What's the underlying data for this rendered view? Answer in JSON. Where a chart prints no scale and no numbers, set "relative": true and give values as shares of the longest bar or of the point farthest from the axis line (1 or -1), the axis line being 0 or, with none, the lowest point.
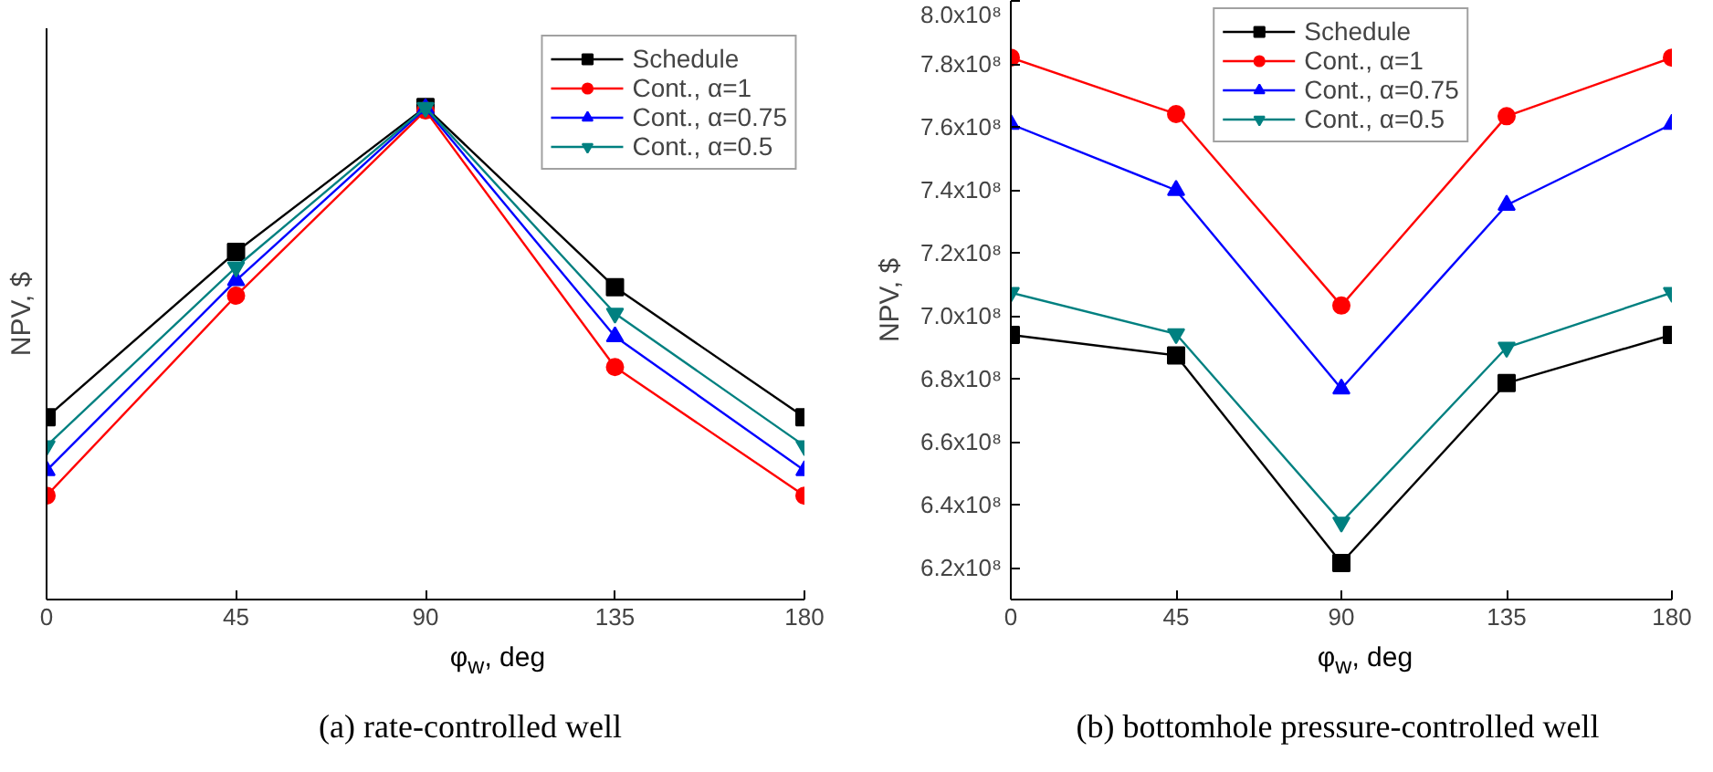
{
  "chart_data": [
    {
      "type": "line",
      "title": "(a) rate-controlled well",
      "xlabel": "φ$_{w}$, deg",
      "ylabel": "NPV, $",
      "relative": true,
      "x": [
        0,
        45,
        90,
        135,
        180
      ],
      "xlim": [
        0,
        180
      ],
      "xticks": [
        0,
        45,
        90,
        135,
        180
      ],
      "grid": false,
      "legend": "top right",
      "series": [
        {
          "name": "Schedule",
          "color": "#000000",
          "marker": "square",
          "values": [
            0.37,
            0.706,
            1,
            0.634,
            0.37
          ]
        },
        {
          "name": "Cont., α=1",
          "color": "#ff0000",
          "marker": "circle",
          "values": [
            0.211,
            0.617,
            0.993,
            0.472,
            0.211
          ]
        },
        {
          "name": "Cont., α=0.75",
          "color": "#0000ff",
          "marker": "triangle",
          "values": [
            0.262,
            0.648,
            0.997,
            0.534,
            0.262
          ]
        },
        {
          "name": "Cont., α=0.5",
          "color": "#008080",
          "marker": "triangle_down",
          "values": [
            0.312,
            0.675,
            0.999,
            0.581,
            0.312
          ]
        }
      ]
    },
    {
      "type": "line",
      "title": "(b) bottomhole pressure-controlled well",
      "xlabel": "φ$_{w}$, deg",
      "ylabel": "NPV, $",
      "x": [
        0,
        45,
        90,
        135,
        180
      ],
      "xlim": [
        0,
        180
      ],
      "xticks": [
        0,
        45,
        90,
        135,
        180
      ],
      "ylim": [
        610000000,
        800000000
      ],
      "yticks": [
        {
          "value": 620000000,
          "label": "6.2x10⁸"
        },
        {
          "value": 640000000,
          "label": "6.4x10⁸"
        },
        {
          "value": 660000000,
          "label": "6.6x10⁸"
        },
        {
          "value": 680000000,
          "label": "6.8x10⁸"
        },
        {
          "value": 700000000,
          "label": "7.0x10⁸"
        },
        {
          "value": 720000000,
          "label": "7.2x10⁸"
        },
        {
          "value": 740000000,
          "label": "7.4x10⁸"
        },
        {
          "value": 760000000,
          "label": "7.6x10⁸"
        },
        {
          "value": 780000000,
          "label": "7.8x10⁸"
        },
        {
          "value": 800000000,
          "label": "8.0x10⁸"
        }
      ],
      "grid": false,
      "legend": "top",
      "series": [
        {
          "name": "Schedule",
          "color": "#000000",
          "marker": "square",
          "values": [
            694000000,
            687500000,
            621600000,
            678700000,
            694000000
          ]
        },
        {
          "name": "Cont., α=1",
          "color": "#ff0000",
          "marker": "circle",
          "values": [
            782000000,
            764100000,
            703300000,
            763400000,
            782000000
          ]
        },
        {
          "name": "Cont., α=0.75",
          "color": "#0000ff",
          "marker": "triangle",
          "values": [
            760900000,
            739900000,
            676900000,
            735200000,
            760900000
          ]
        },
        {
          "name": "Cont., α=0.5",
          "color": "#008080",
          "marker": "triangle_down",
          "values": [
            707400000,
            694300000,
            634500000,
            690000000,
            707400000
          ]
        }
      ]
    }
  ]
}
